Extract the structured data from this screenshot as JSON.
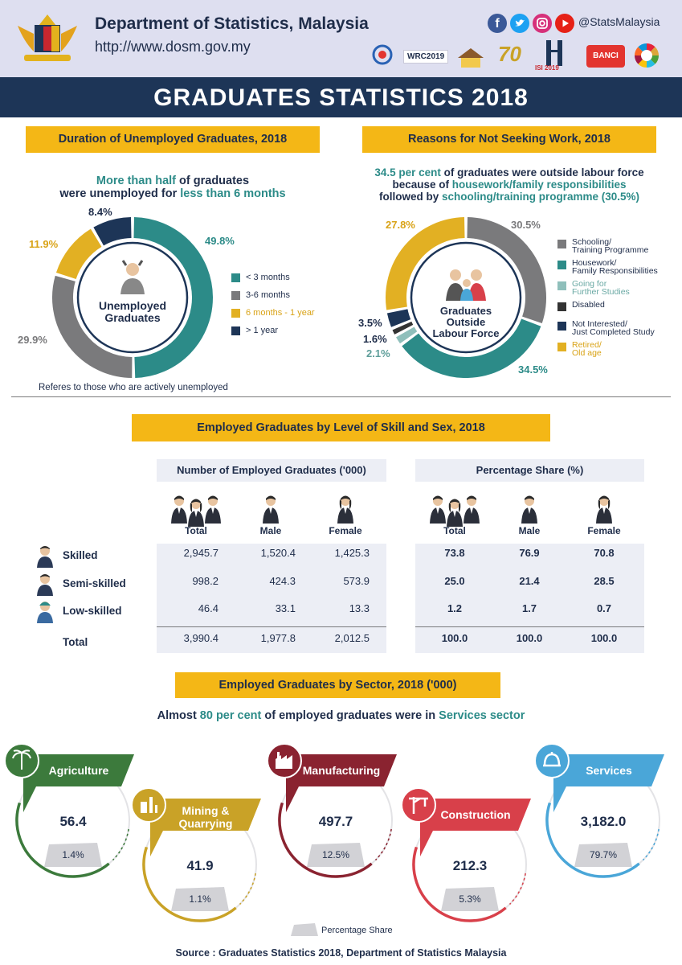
{
  "header": {
    "org": "Department of Statistics, Malaysia",
    "url": "http://www.dosm.gov.my",
    "handle": "@StatsMalaysia",
    "badges": [
      "WRC2019",
      "70",
      "ISI 2019",
      "BANCI"
    ]
  },
  "page_title": "GRADUATES STATISTICS 2018",
  "unemployed": {
    "banner": "Duration of Unemployed Graduates, 2018",
    "headline_a": "More than half",
    "headline_b": " of graduates",
    "headline_c": "were unemployed for ",
    "headline_d": "less than 6 months",
    "center_label_1": "Unemployed",
    "center_label_2": "Graduates",
    "note": "Referes to those who are actively unemployed",
    "colors": [
      "#2c8b88",
      "#7a7a7c",
      "#e2b023",
      "#1d3557"
    ]
  },
  "reasons": {
    "banner": "Reasons for Not Seeking Work, 2018",
    "headline_a": "34.5 per cent",
    "headline_b": " of graduates were outside labour force",
    "headline_c": "because of ",
    "headline_d": "housework/family responsibilities",
    "headline_e": "followed by ",
    "headline_f": "schooling/training programme (30.5%)",
    "center_label_1": "Graduates",
    "center_label_2": "Outside",
    "center_label_3": "Labour Force",
    "colors": [
      "#7a7a7c",
      "#2c8b88",
      "#8fbfbb",
      "#333333",
      "#1d3557",
      "#e2b023"
    ]
  },
  "skill": {
    "banner": "Employed Graduates by Level of Skill and Sex, 2018",
    "number_header": "Number of Employed Graduates ('000)",
    "pct_header": "Percentage Share (%)",
    "col_labels": [
      "Total",
      "Male",
      "Female"
    ],
    "rows": [
      {
        "label": "Skilled",
        "num": [
          "2,945.7",
          "1,520.4",
          "1,425.3"
        ],
        "pct": [
          "73.8",
          "76.9",
          "70.8"
        ]
      },
      {
        "label": "Semi-skilled",
        "num": [
          "998.2",
          "424.3",
          "573.9"
        ],
        "pct": [
          "25.0",
          "21.4",
          "28.5"
        ]
      },
      {
        "label": "Low-skilled",
        "num": [
          "46.4",
          "33.1",
          "13.3"
        ],
        "pct": [
          "1.2",
          "1.7",
          "0.7"
        ]
      },
      {
        "label": "Total",
        "num": [
          "3,990.4",
          "1,977.8",
          "2,012.5"
        ],
        "pct": [
          "100.0",
          "100.0",
          "100.0"
        ]
      }
    ]
  },
  "sector": {
    "banner": "Employed Graduates by Sector, 2018 ('000)",
    "headline_a": "Almost ",
    "headline_b": "80 per cent",
    "headline_c": " of employed graduates were in ",
    "headline_d": "Services sector",
    "legend": "Percentage Share",
    "source": "Source : Graduates Statistics 2018, Department of Statistics Malaysia"
  },
  "chart_data": [
    {
      "type": "pie",
      "title": "Duration of Unemployed Graduates, 2018",
      "labels": [
        "< 3 months",
        "3-6 months",
        "6 months - 1 year",
        "> 1 year"
      ],
      "values": [
        49.8,
        29.9,
        11.9,
        8.4
      ],
      "value_labels": [
        "49.8%",
        "29.9%",
        "11.9%",
        "8.4%"
      ],
      "legend_position": "right"
    },
    {
      "type": "pie",
      "title": "Reasons for Not Seeking Work, 2018",
      "labels": [
        "Schooling/\nTraining Programme",
        "Housework/\nFamily Responsibilities",
        "Going for\nFurther Studies",
        "Disabled",
        "Not Interested/\nJust Completed Study",
        "Retired/\nOld age"
      ],
      "values": [
        30.5,
        34.5,
        2.1,
        1.6,
        3.5,
        27.8
      ],
      "value_labels": [
        "30.5%",
        "34.5%",
        "2.1%",
        "1.6%",
        "3.5%",
        "27.8%"
      ],
      "legend_position": "right"
    },
    {
      "type": "bar",
      "title": "Employed Graduates by Sector, 2018 ('000)",
      "categories": [
        "Agriculture",
        "Mining &\nQuarrying",
        "Manufacturing",
        "Construction",
        "Services"
      ],
      "values": [
        "56.4",
        "41.9",
        "497.7",
        "212.3",
        "3,182.0"
      ],
      "shares": [
        "1.4%",
        "1.1%",
        "12.5%",
        "5.3%",
        "79.7%"
      ],
      "colors": [
        "#3c7a3c",
        "#c9a227",
        "#8a2330",
        "#d8404a",
        "#4aa6d8"
      ]
    }
  ]
}
